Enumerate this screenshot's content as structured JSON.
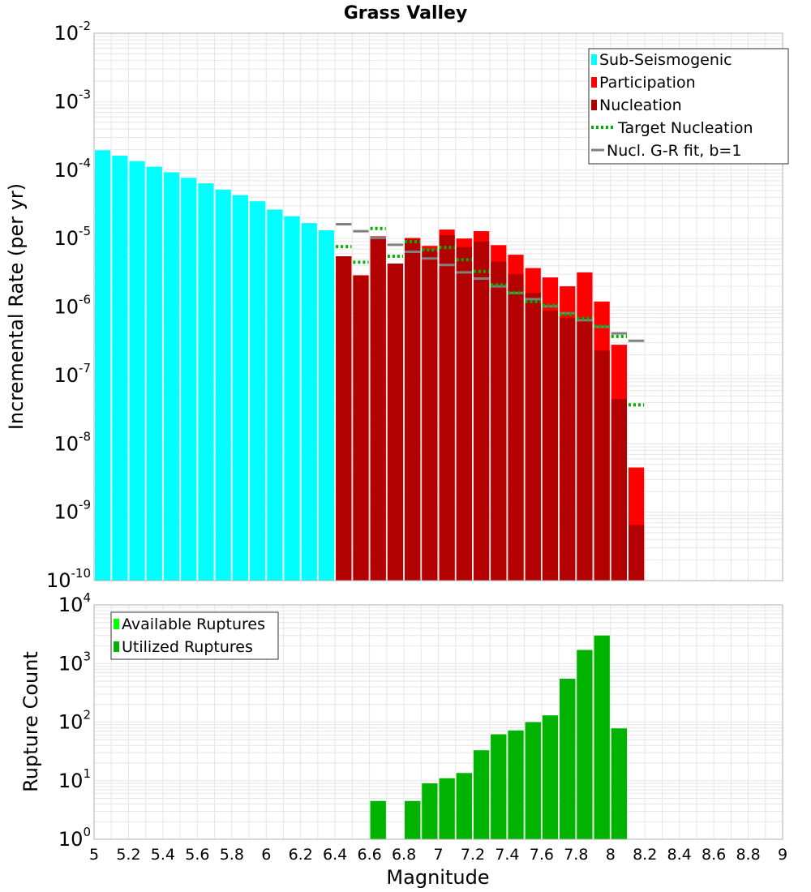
{
  "colors": {
    "sub_seismogenic": "#00ffff",
    "participation": "#ff0000",
    "nucleation": "#b30000",
    "target_nucleation": "#00b300",
    "gr_fit": "#808080",
    "available": "#00ff00",
    "utilized": "#00b300",
    "grid": "#e6e6e6",
    "frame": "#b0b0b0"
  },
  "chart_data": [
    {
      "type": "bar",
      "title": "Grass Valley",
      "xlabel": "Magnitude",
      "ylabel": "Incremental Rate (per yr)",
      "yscale": "log",
      "xlim": [
        5,
        9
      ],
      "ylim_exp": [
        -10,
        -2
      ],
      "y_tick_exponents": [
        "-2",
        "-3",
        "-4",
        "-5",
        "-6",
        "-7",
        "-8",
        "-9",
        "-10"
      ],
      "y_tick_base": "10",
      "bin_width": 0.1,
      "series": [
        {
          "name": "Sub-Seismogenic",
          "style": "bar",
          "x": [
            5.0,
            5.1,
            5.2,
            5.3,
            5.4,
            5.5,
            5.6,
            5.7,
            5.8,
            5.9,
            6.0,
            6.1,
            6.2,
            6.3
          ],
          "values": [
            0.000195,
            0.000162,
            0.000135,
            0.000112,
            9.3e-05,
            7.7e-05,
            6.4e-05,
            5.2e-05,
            4.3e-05,
            3.5e-05,
            2.65e-05,
            2.12e-05,
            1.68e-05,
            1.32e-05
          ]
        },
        {
          "name": "Participation",
          "style": "bar",
          "x": [
            6.4,
            6.5,
            6.6,
            6.7,
            6.8,
            6.9,
            7.0,
            7.1,
            7.2,
            7.3,
            7.4,
            7.5,
            7.6,
            7.7,
            7.8,
            7.9,
            8.0,
            8.1
          ],
          "values": [
            5.5e-06,
            2.9e-06,
            1.08e-05,
            4.3e-06,
            1.02e-05,
            7.8e-06,
            1.35e-05,
            1e-05,
            1.28e-05,
            8e-06,
            5.8e-06,
            3.7e-06,
            2.7e-06,
            2e-06,
            3.2e-06,
            1.2e-06,
            2.8e-07,
            4.5e-09
          ]
        },
        {
          "name": "Nucleation",
          "style": "bar",
          "x": [
            6.4,
            6.5,
            6.6,
            6.7,
            6.8,
            6.9,
            7.0,
            7.1,
            7.2,
            7.3,
            7.4,
            7.5,
            7.6,
            7.7,
            7.8,
            7.9,
            8.0,
            8.1
          ],
          "values": [
            5.5e-06,
            2.9e-06,
            1.03e-05,
            4.3e-06,
            9.7e-06,
            6.8e-06,
            1.12e-05,
            7.5e-06,
            9e-06,
            4.6e-06,
            3e-06,
            1.6e-06,
            8.8e-07,
            6.9e-07,
            6.9e-07,
            2.3e-07,
            4.5e-08,
            6.5e-10
          ]
        },
        {
          "name": "Target Nucleation",
          "style": "dotted-step",
          "x": [
            6.4,
            6.5,
            6.6,
            6.7,
            6.8,
            6.9,
            7.0,
            7.1,
            7.2,
            7.3,
            7.4,
            7.5,
            7.6,
            7.7,
            7.8,
            7.9,
            8.0,
            8.1
          ],
          "values": [
            7.6e-06,
            4.5e-06,
            1.4e-05,
            5.5e-06,
            9e-06,
            6.8e-06,
            7.4e-06,
            4.9e-06,
            3.3e-06,
            2.1e-06,
            1.6e-06,
            1.2e-06,
            1.05e-06,
            7.8e-07,
            6.8e-07,
            5.2e-07,
            3.7e-07,
            3.7e-08
          ]
        },
        {
          "name": "Nucl. G-R fit, b=1",
          "style": "step",
          "x": [
            6.4,
            6.5,
            6.6,
            6.7,
            6.8,
            6.9,
            7.0,
            7.1,
            7.2,
            7.3,
            7.4,
            7.5,
            7.6,
            7.7,
            7.8,
            7.9,
            8.0,
            8.1
          ],
          "values": [
            1.62e-05,
            1.28e-05,
            1.02e-05,
            8.1e-06,
            6.4e-06,
            5.1e-06,
            4.1e-06,
            3.2e-06,
            2.6e-06,
            2e-06,
            1.6e-06,
            1.3e-06,
            1.02e-06,
            8.1e-07,
            6.4e-07,
            5.1e-07,
            4.1e-07,
            3.2e-07
          ]
        }
      ],
      "legend": {
        "position": "top-right",
        "entries": [
          "Sub-Seismogenic",
          "Participation",
          "Nucleation",
          "Target Nucleation",
          "Nucl. G-R fit, b=1"
        ]
      }
    },
    {
      "type": "bar",
      "title": "",
      "xlabel": "Magnitude",
      "ylabel": "Rupture Count",
      "yscale": "log",
      "xlim": [
        5,
        9
      ],
      "ylim_exp": [
        0,
        4
      ],
      "y_tick_exponents": [
        "4",
        "3",
        "2",
        "1",
        "0"
      ],
      "y_tick_base": "10",
      "x_ticks": [
        "5",
        "5.2",
        "5.4",
        "5.6",
        "5.8",
        "6",
        "6.2",
        "6.4",
        "6.6",
        "6.8",
        "7",
        "7.2",
        "7.4",
        "7.6",
        "7.8",
        "8",
        "8.2",
        "8.4",
        "8.6",
        "8.8",
        "9"
      ],
      "series": [
        {
          "name": "Available Ruptures",
          "style": "bar",
          "x": [
            6.6,
            6.8,
            6.9,
            7.0,
            7.1,
            7.2,
            7.3,
            7.4,
            7.5,
            7.6,
            7.7,
            7.8,
            7.9,
            8.0
          ],
          "values": [
            4.5,
            4.5,
            9,
            11,
            13.5,
            33,
            62,
            72,
            100,
            130,
            550,
            1700,
            3000,
            78
          ]
        },
        {
          "name": "Utilized Ruptures",
          "style": "bar",
          "x": [
            6.6,
            6.8,
            6.9,
            7.0,
            7.1,
            7.2,
            7.3,
            7.4,
            7.5,
            7.6,
            7.7,
            7.8,
            7.9,
            8.0
          ],
          "values": [
            4.5,
            4.5,
            9,
            11,
            13.5,
            33,
            62,
            72,
            100,
            130,
            550,
            1700,
            3000,
            78
          ]
        }
      ],
      "legend": {
        "position": "top-left",
        "entries": [
          "Available Ruptures",
          "Utilized Ruptures"
        ]
      }
    }
  ]
}
